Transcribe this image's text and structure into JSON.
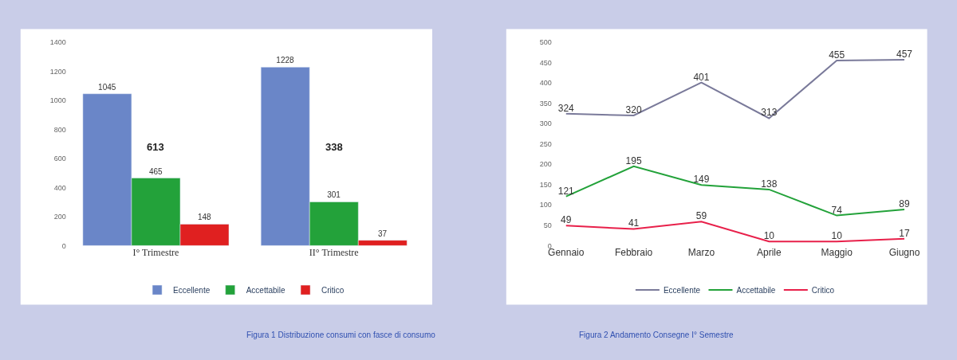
{
  "chart_data": [
    {
      "type": "bar",
      "categories": [
        "I° Trimestre",
        "II° Trimestre"
      ],
      "series": [
        {
          "name": "Eccellente",
          "color": "#6a86c8",
          "values": [
            1045,
            1228
          ]
        },
        {
          "name": "Accettabile",
          "color": "#23a23a",
          "values": [
            465,
            301
          ]
        },
        {
          "name": "Critico",
          "color": "#e02020",
          "values": [
            148,
            37
          ]
        }
      ],
      "ylim": [
        0,
        1400
      ],
      "yticks": [
        0,
        200,
        400,
        600,
        800,
        1000,
        1200,
        1400
      ],
      "legend": "bottom",
      "data_labels": true,
      "annotations": [
        "613",
        "338",
        "Figura 1 Distribuzione consumi con fasce di consumo"
      ]
    },
    {
      "type": "line",
      "categories": [
        "Gennaio",
        "Febbraio",
        "Marzo",
        "Aprile",
        "Maggio",
        "Giugno"
      ],
      "series": [
        {
          "name": "Eccellente",
          "color": "#7a7a9a",
          "values": [
            324,
            320,
            401,
            313,
            455,
            457
          ]
        },
        {
          "name": "Accettabile",
          "color": "#23a23a",
          "values": [
            121,
            195,
            149,
            138,
            74,
            89
          ]
        },
        {
          "name": "Critico",
          "color": "#e8204a",
          "values": [
            49,
            41,
            59,
            10,
            10,
            17
          ]
        }
      ],
      "ylim": [
        0,
        500
      ],
      "yticks": [
        0,
        50,
        100,
        150,
        200,
        250,
        300,
        350,
        400,
        450,
        500
      ],
      "legend": "bottom",
      "data_labels": true,
      "marker": "none",
      "line_style": "solid",
      "annotations": [
        "Figura 2 Andamento Consegne I° Semestre"
      ]
    }
  ]
}
